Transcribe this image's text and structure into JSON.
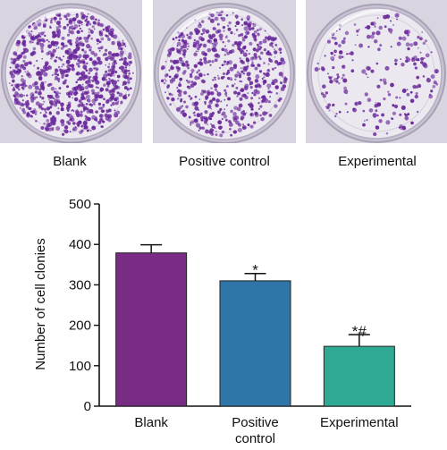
{
  "plates": [
    {
      "label": "Blank",
      "density": 900
    },
    {
      "label": "Positive control",
      "density": 650
    },
    {
      "label": "Experimental",
      "density": 230
    }
  ],
  "colors": {
    "stain": "#6b2a9c",
    "plate_background": "#d9d4e0",
    "bars": [
      "#782c84",
      "#2e76a8",
      "#2fa894"
    ]
  },
  "chart_data": {
    "type": "bar",
    "categories": [
      "Blank",
      "Positive control",
      "Experimental"
    ],
    "category_lines": [
      [
        "Blank"
      ],
      [
        "Positive",
        "control"
      ],
      [
        "Experimental"
      ]
    ],
    "values": [
      379,
      310,
      148
    ],
    "errors": [
      20,
      18,
      29
    ],
    "annotations": [
      "",
      "*",
      "*#"
    ],
    "ylabel": "Number of cell clonies",
    "ylim": [
      0,
      500
    ],
    "yticks": [
      0,
      100,
      200,
      300,
      400,
      500
    ],
    "grid": false
  }
}
